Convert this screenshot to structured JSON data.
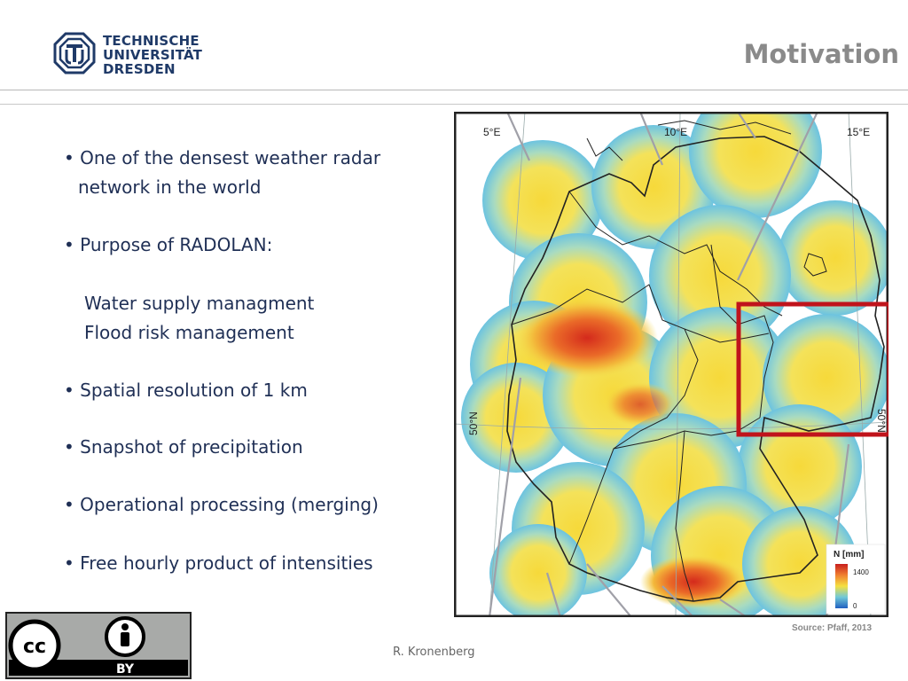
{
  "header": {
    "logo_lines": [
      "TECHNISCHE",
      "UNIVERSITÄT",
      "DRESDEN"
    ],
    "title": "Motivation"
  },
  "bullets": [
    "• One of the densest weather radar",
    "network in the world",
    "• Purpose of RADOLAN:",
    "Water supply managment",
    "Flood risk management",
    "• Spatial resolution of 1 km",
    "• Snapshot of precipitation",
    "• Operational processing (merging)",
    "• Free hourly product of intensities"
  ],
  "map": {
    "lon_labels": [
      "5°E",
      "10°E",
      "15°E"
    ],
    "lat_labels": [
      "50°N",
      "50°N"
    ],
    "legend_title": "N [mm]",
    "legend_max": "1400",
    "legend_min": "0",
    "highlight_color": "#c0141c",
    "source": "Source: Pfaff, 2013"
  },
  "footer": {
    "author": "R. Kronenberg",
    "license_label": "BY"
  }
}
